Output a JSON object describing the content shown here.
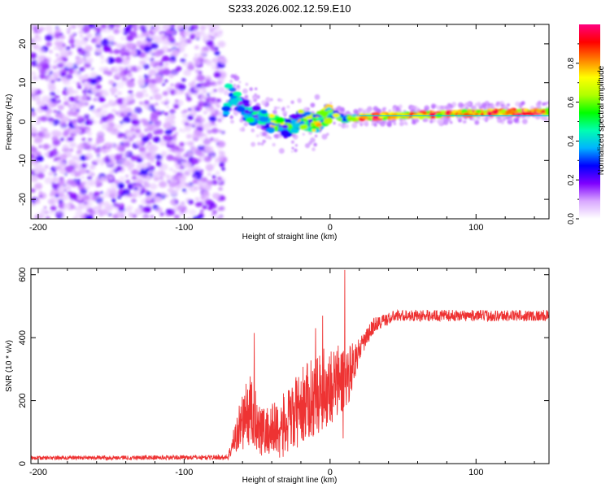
{
  "title": "S233.2026.002.12.59.E10",
  "chart_data": [
    {
      "type": "heatmap",
      "xlabel": "Height of straight line (km)",
      "ylabel": "Frequency (Hz)",
      "xlim": [
        -205,
        150
      ],
      "ylim": [
        -25,
        25
      ],
      "xticks": [
        -200,
        -100,
        0,
        100
      ],
      "yticks": [
        -20,
        -10,
        0,
        10,
        20
      ],
      "colorbar": {
        "label": "Normalized spectral amplitude",
        "range": [
          0,
          1
        ],
        "ticks": [
          0.0,
          0.2,
          0.4,
          0.6,
          0.8
        ],
        "colors": [
          "#ffffff",
          "#d9a8ff",
          "#7f00ff",
          "#0000ff",
          "#00b4ff",
          "#00ffb0",
          "#00ff00",
          "#b0ff00",
          "#ffff00",
          "#ff8000",
          "#ff0000",
          "#ff0080"
        ]
      },
      "features": {
        "noise_region_x": [
          -205,
          -73
        ],
        "carrier_ridge": [
          {
            "x": -70,
            "f": 7.5
          },
          {
            "x": -62,
            "f": 4.5
          },
          {
            "x": -55,
            "f": 2.0
          },
          {
            "x": -48,
            "f": 1.0
          },
          {
            "x": -40,
            "f": -0.5
          },
          {
            "x": -30,
            "f": -2.0
          },
          {
            "x": -20,
            "f": 1.0
          },
          {
            "x": -10,
            "f": -0.5
          },
          {
            "x": 0,
            "f": 2.5
          },
          {
            "x": 10,
            "f": 0.5
          },
          {
            "x": 20,
            "f": 1.0
          },
          {
            "x": 40,
            "f": 1.5
          },
          {
            "x": 70,
            "f": 1.8
          },
          {
            "x": 100,
            "f": 2.2
          },
          {
            "x": 150,
            "f": 2.5
          }
        ],
        "cyan_line_f": 1.5
      }
    },
    {
      "type": "line",
      "xlabel": "Height of straight line (km)",
      "ylabel": "SNR (10 * v/v)",
      "xlim": [
        -205,
        150
      ],
      "ylim": [
        0,
        620
      ],
      "xticks": [
        -200,
        -100,
        0,
        100
      ],
      "yticks": [
        0,
        200,
        400,
        600
      ],
      "series": [
        {
          "name": "SNR",
          "color": "#ee3333",
          "envelope": [
            {
              "x": -205,
              "mean": 18,
              "noise": 6
            },
            {
              "x": -70,
              "mean": 20,
              "noise": 8
            },
            {
              "x": -62,
              "mean": 120,
              "noise": 80
            },
            {
              "x": -55,
              "mean": 170,
              "noise": 120
            },
            {
              "x": -45,
              "mean": 100,
              "noise": 80
            },
            {
              "x": -30,
              "mean": 120,
              "noise": 110
            },
            {
              "x": -20,
              "mean": 180,
              "noise": 120
            },
            {
              "x": -10,
              "mean": 220,
              "noise": 130
            },
            {
              "x": 0,
              "mean": 250,
              "noise": 130
            },
            {
              "x": 10,
              "mean": 260,
              "noise": 120
            },
            {
              "x": 20,
              "mean": 360,
              "noise": 35
            },
            {
              "x": 30,
              "mean": 440,
              "noise": 25
            },
            {
              "x": 45,
              "mean": 470,
              "noise": 18
            },
            {
              "x": 150,
              "mean": 470,
              "noise": 18
            }
          ],
          "peaks": [
            {
              "x": -52,
              "y": 415
            },
            {
              "x": -10,
              "y": 430
            },
            {
              "x": -5,
              "y": 470
            },
            {
              "x": 10,
              "y": 615
            },
            {
              "x": 9,
              "y": 80
            }
          ]
        }
      ]
    }
  ]
}
